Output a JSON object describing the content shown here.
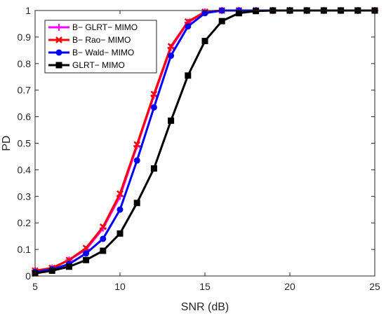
{
  "chart_data": {
    "type": "line",
    "title": "",
    "xlabel": "SNR (dB)",
    "ylabel": "PD",
    "xlim": [
      5,
      25
    ],
    "ylim": [
      0,
      1
    ],
    "xticks": [
      "5",
      "10",
      "15",
      "20",
      "25"
    ],
    "yticks": [
      "0",
      "0.1",
      "0.2",
      "0.3",
      "0.4",
      "0.5",
      "0.6",
      "0.7",
      "0.8",
      "0.9",
      "1"
    ],
    "grid": false,
    "legend_position": "top-left",
    "x": [
      5,
      6,
      7,
      8,
      9,
      10,
      11,
      12,
      13,
      14,
      15,
      16,
      17,
      18,
      19,
      20,
      21,
      22,
      23,
      24,
      25
    ],
    "series": [
      {
        "name": "B− GLRT− MIMO",
        "color": "#ff00ff",
        "marker": "plus",
        "values": [
          0.02,
          0.03,
          0.06,
          0.1,
          0.18,
          0.3,
          0.49,
          0.68,
          0.86,
          0.955,
          0.995,
          1,
          1,
          1,
          1,
          1,
          1,
          1,
          1,
          1,
          1
        ]
      },
      {
        "name": "B− Rao− MIMO",
        "color": "#ff0000",
        "marker": "x",
        "values": [
          0.02,
          0.03,
          0.06,
          0.105,
          0.185,
          0.31,
          0.495,
          0.685,
          0.865,
          0.958,
          0.995,
          1,
          1,
          1,
          1,
          1,
          1,
          1,
          1,
          1,
          1
        ]
      },
      {
        "name": "B− Wald− MIMO",
        "color": "#0000ff",
        "marker": "circle",
        "values": [
          0.015,
          0.025,
          0.045,
          0.085,
          0.14,
          0.25,
          0.435,
          0.635,
          0.83,
          0.94,
          0.99,
          1,
          1,
          1,
          1,
          1,
          1,
          1,
          1,
          1,
          1
        ]
      },
      {
        "name": "GLRT− MIMO",
        "color": "#000000",
        "marker": "square",
        "values": [
          0.01,
          0.02,
          0.035,
          0.06,
          0.095,
          0.16,
          0.275,
          0.405,
          0.585,
          0.755,
          0.885,
          0.96,
          0.99,
          0.998,
          1,
          1,
          1,
          1,
          1,
          1,
          1
        ]
      }
    ]
  }
}
